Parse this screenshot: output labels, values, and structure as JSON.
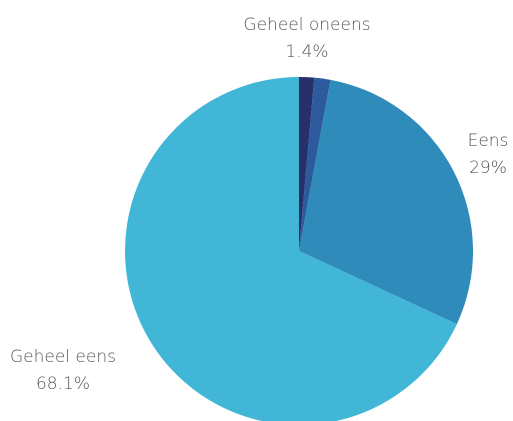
{
  "chart_data": {
    "type": "pie",
    "title": "",
    "slices": [
      {
        "label": "",
        "value": 1.4,
        "value_label": "",
        "color": "#27306b"
      },
      {
        "label": "",
        "value": 1.5,
        "value_label": "",
        "color": "#2c5a9c"
      },
      {
        "label": "Eens",
        "value": 29,
        "value_label": "29%",
        "color": "#2e8bba"
      },
      {
        "label": "Geheel eens",
        "value": 68.1,
        "value_label": "68.1%",
        "color": "#41b6d6"
      }
    ],
    "callout": {
      "label": "Geheel oneens",
      "value_label": "1.4%"
    }
  }
}
